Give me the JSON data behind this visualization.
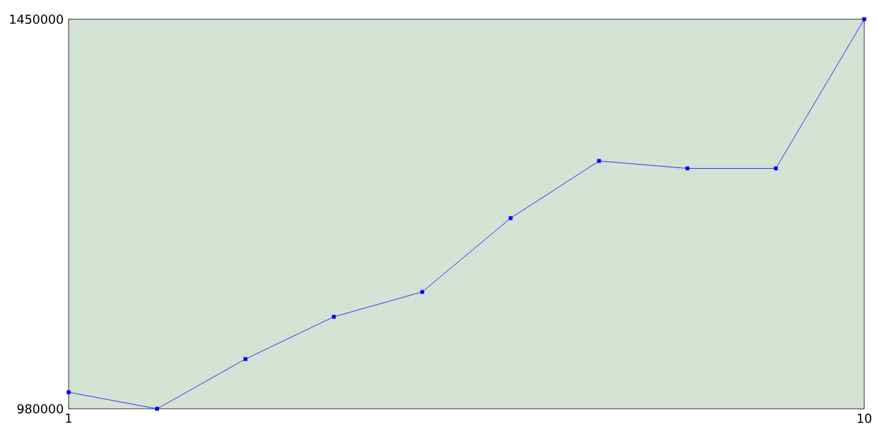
{
  "chart_data": {
    "type": "line",
    "x": [
      1,
      2,
      3,
      4,
      5,
      6,
      7,
      8,
      9,
      10
    ],
    "values": [
      1000000,
      980000,
      1040000,
      1091000,
      1121000,
      1210000,
      1279000,
      1270000,
      1270000,
      1450000
    ],
    "color": "#0000ff",
    "marker": "square",
    "xlim": [
      1,
      10
    ],
    "ylim": [
      980000,
      1450000
    ],
    "xticks": [
      1,
      10
    ],
    "yticks": [
      980000,
      1450000
    ]
  }
}
